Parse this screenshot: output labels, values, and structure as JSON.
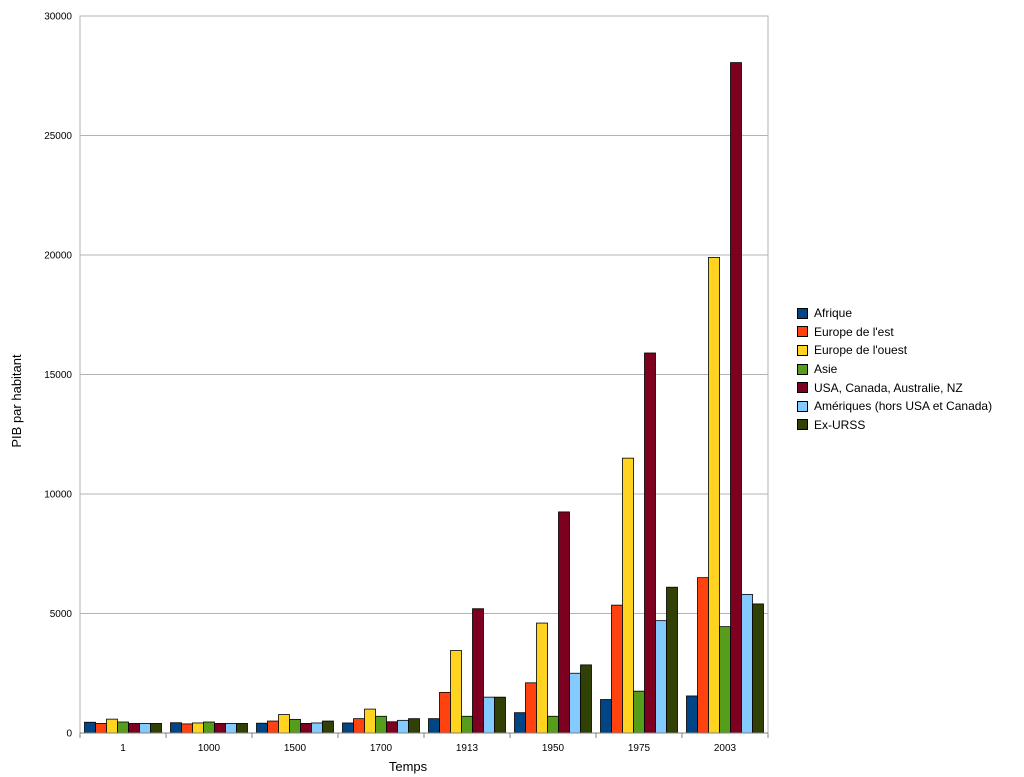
{
  "chart_data": {
    "type": "bar",
    "title": "",
    "xlabel": "Temps",
    "ylabel": "PIB par habitant",
    "ylim": [
      0,
      30000
    ],
    "yticks": [
      0,
      5000,
      10000,
      15000,
      20000,
      25000,
      30000
    ],
    "grid": true,
    "legend_position": "right",
    "categories": [
      "1",
      "1000",
      "1500",
      "1700",
      "1913",
      "1950",
      "1975",
      "2003"
    ],
    "series": [
      {
        "name": "Afrique",
        "color": "#004586",
        "values": [
          450,
          430,
          410,
          420,
          600,
          850,
          1400,
          1550
        ]
      },
      {
        "name": "Europe de l'est",
        "color": "#ff420e",
        "values": [
          400,
          380,
          500,
          600,
          1700,
          2100,
          5350,
          6500
        ]
      },
      {
        "name": "Europe de l'ouest",
        "color": "#ffd320",
        "values": [
          580,
          420,
          770,
          1000,
          3450,
          4600,
          11500,
          19900
        ]
      },
      {
        "name": "Asie",
        "color": "#579d1c",
        "values": [
          460,
          460,
          570,
          700,
          700,
          700,
          1750,
          4450
        ]
      },
      {
        "name": "USA, Canada, Australie, NZ",
        "color": "#7e0021",
        "values": [
          400,
          400,
          400,
          470,
          5200,
          9250,
          15900,
          28050
        ]
      },
      {
        "name": "Amériques (hors USA et Canada)",
        "color": "#83caff",
        "values": [
          400,
          400,
          420,
          530,
          1500,
          2500,
          4700,
          5800
        ]
      },
      {
        "name": "Ex-URSS",
        "color": "#314004",
        "values": [
          400,
          400,
          500,
          600,
          1500,
          2850,
          6100,
          5400
        ]
      }
    ]
  }
}
